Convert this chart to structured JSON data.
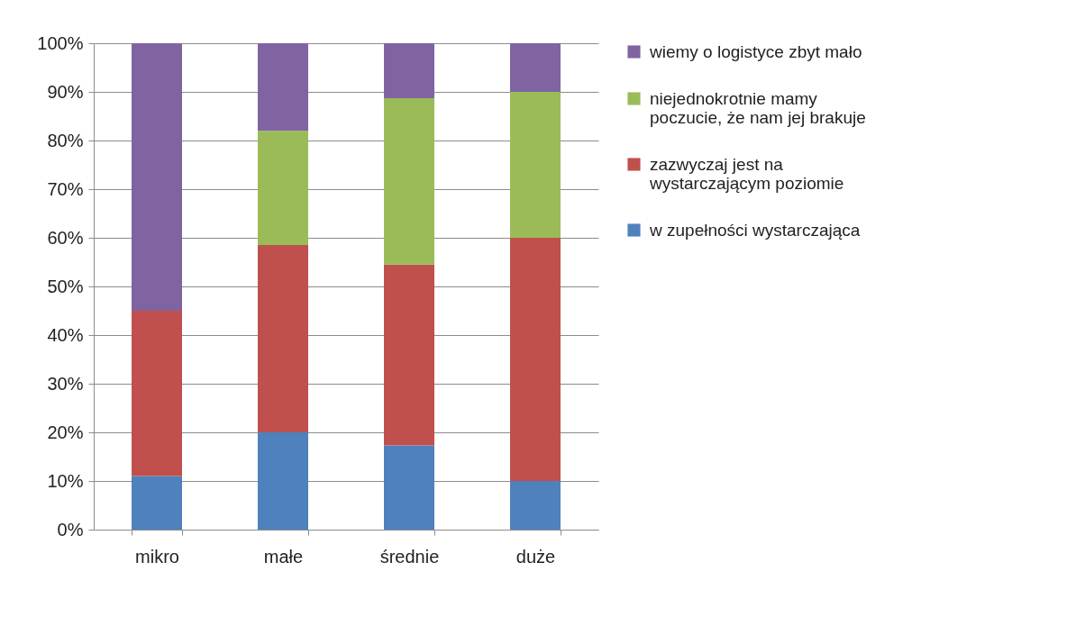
{
  "chart_data": {
    "type": "bar",
    "stacked": true,
    "categories": [
      "mikro",
      "małe",
      "średnie",
      "duże"
    ],
    "series": [
      {
        "name": "w zupełności  wystarczająca",
        "color": "#4f81bd",
        "values": [
          11,
          20,
          17.3,
          10
        ]
      },
      {
        "name": "zazwyczaj jest na wystarczającym poziomie",
        "color": "#c0504d",
        "values": [
          34,
          38.5,
          37.2,
          50
        ]
      },
      {
        "name": "niejednokrotnie  mamy poczucie, że nam  jej brakuje",
        "color": "#9bbb59",
        "values": [
          0,
          23.5,
          34.2,
          30
        ]
      },
      {
        "name": "wiemy o logistyce  zbyt mało",
        "color": "#8064a2",
        "values": [
          55,
          18,
          11.3,
          10
        ]
      }
    ],
    "ylim": [
      0,
      100
    ],
    "yticks": [
      {
        "value": 0,
        "label": "0%"
      },
      {
        "value": 10,
        "label": "10%"
      },
      {
        "value": 20,
        "label": "20%"
      },
      {
        "value": 30,
        "label": "30%"
      },
      {
        "value": 40,
        "label": "40%"
      },
      {
        "value": 50,
        "label": "50%"
      },
      {
        "value": 60,
        "label": "60%"
      },
      {
        "value": 70,
        "label": "70%"
      },
      {
        "value": 80,
        "label": "80%"
      },
      {
        "value": 90,
        "label": "90%"
      },
      {
        "value": 100,
        "label": "100%"
      }
    ],
    "grid": "y",
    "legend": "right"
  }
}
